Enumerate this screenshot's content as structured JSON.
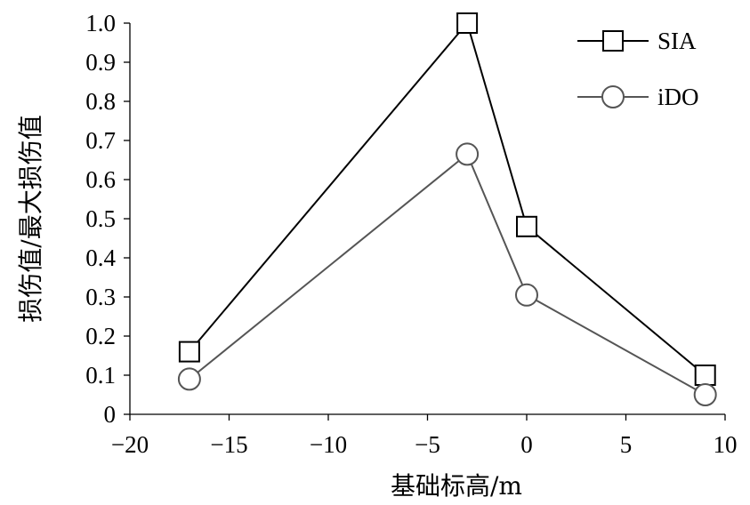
{
  "chart_data": {
    "type": "line",
    "xlabel": "基础标高/m",
    "ylabel": "损伤值/最大损伤值",
    "xlim": [
      -20,
      10
    ],
    "ylim": [
      0,
      1.0
    ],
    "x_ticks": [
      -20,
      -15,
      -10,
      -5,
      0,
      5,
      10
    ],
    "x_tick_labels": [
      "−20",
      "−15",
      "−10",
      "−5",
      "0",
      "5",
      "10"
    ],
    "y_ticks": [
      0,
      0.1,
      0.2,
      0.3,
      0.4,
      0.5,
      0.6,
      0.7,
      0.8,
      0.9,
      1.0
    ],
    "y_tick_labels": [
      "0",
      "0.1",
      "0.2",
      "0.3",
      "0.4",
      "0.5",
      "0.6",
      "0.7",
      "0.8",
      "0.9",
      "1.0"
    ],
    "grid": false,
    "legend_position": "top-right",
    "series": [
      {
        "name": "SIA",
        "marker": "square",
        "color": "#000000",
        "x": [
          -17,
          -3,
          0,
          9
        ],
        "y": [
          0.16,
          1.0,
          0.48,
          0.1
        ]
      },
      {
        "name": "iDO",
        "marker": "circle",
        "color": "#555555",
        "x": [
          -17,
          -3,
          0,
          9
        ],
        "y": [
          0.09,
          0.665,
          0.305,
          0.05
        ]
      }
    ]
  }
}
